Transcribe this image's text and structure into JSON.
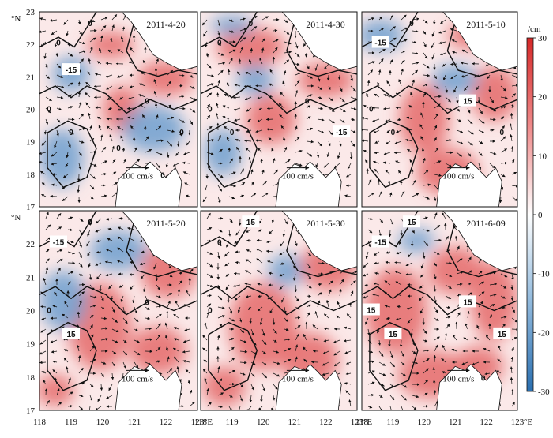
{
  "figure": {
    "panels": [
      {
        "date": "2011-4-20",
        "contour_labels": [
          "0",
          "0",
          "0",
          "0",
          "0",
          "0",
          "0",
          "-15",
          "0"
        ],
        "scale_label": "100 cm/s"
      },
      {
        "date": "2011-4-30",
        "contour_labels": [
          "0",
          "0",
          "0",
          "0",
          "0",
          "-15"
        ],
        "scale_label": "100 cm/s"
      },
      {
        "date": "2011-5-10",
        "contour_labels": [
          "-15",
          "0",
          "0",
          "0",
          "15",
          "0"
        ],
        "scale_label": "100 cm/s"
      },
      {
        "date": "2011-5-20",
        "contour_labels": [
          "-15",
          "0",
          "0",
          "15",
          "0"
        ],
        "scale_label": "100 cm/s"
      },
      {
        "date": "2011-5-30",
        "contour_labels": [
          "0",
          "15",
          "0"
        ],
        "scale_label": "100 cm/s"
      },
      {
        "date": "2011-6-09",
        "contour_labels": [
          "-15",
          "15",
          "15",
          "15",
          "15",
          "15",
          "0"
        ],
        "scale_label": "100 cm/s"
      }
    ],
    "y_axis": {
      "unit": "°N",
      "ticks": [
        "23",
        "22",
        "21",
        "20",
        "19",
        "18",
        "17"
      ]
    },
    "x_axis": {
      "unit": "°E",
      "ticks": [
        "118",
        "119",
        "120",
        "121",
        "122",
        "123"
      ]
    },
    "colorbar": {
      "unit": "/cm",
      "ticks": [
        "30",
        "20",
        "10",
        "0",
        "-10",
        "-20",
        "-30"
      ],
      "colors": {
        "positive": "#d62828",
        "zero": "#ffffff",
        "negative": "#2a6fb0"
      }
    },
    "colors": {
      "land": "#ffffff",
      "vector": "#111111",
      "contour": "#111111"
    }
  }
}
